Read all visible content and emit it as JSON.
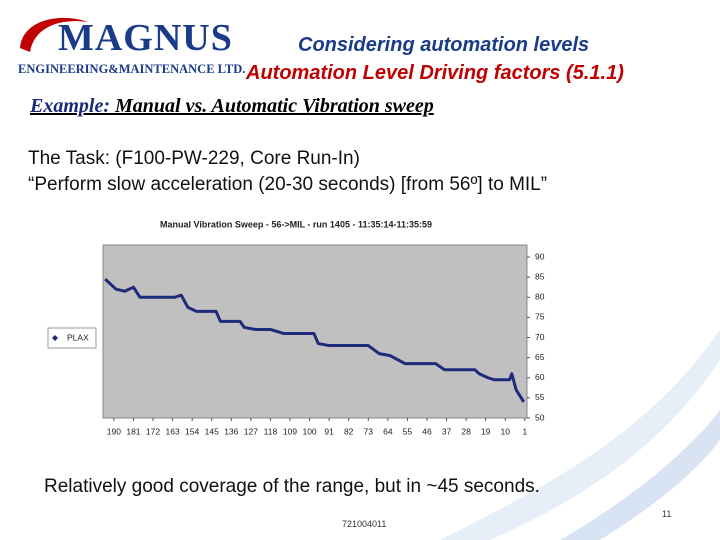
{
  "header": {
    "logo_name": "MAGNUS",
    "logo_sub": "ENGINEERING&MAINTENANCE LTD.",
    "title": "Considering automation levels",
    "subtitle": "Automation Level Driving factors (5.1.1)"
  },
  "example": {
    "label": "Example:",
    "text": "Manual vs. Automatic Vibration sweep"
  },
  "body": {
    "lines": [
      "The Task: (F100-PW-229, Core Run-In)",
      "“Perform slow acceleration (20-30 seconds) [from 56º] to MIL”"
    ]
  },
  "chart_data": {
    "type": "line",
    "title": "Manual Vibration Sweep - 56->MIL - run 1405 - 11:35:14-11:35:59",
    "x": [
      194,
      189,
      185,
      181,
      178,
      169,
      162,
      159,
      156,
      152,
      143,
      141,
      132,
      130,
      125,
      118,
      112,
      98,
      96,
      91,
      73,
      68,
      63,
      56,
      42,
      38,
      24,
      22,
      18,
      15,
      8,
      7,
      5,
      1.5
    ],
    "series": [
      {
        "name": "PLAX",
        "color": "#1f2a7a",
        "values": [
          84.5,
          82,
          81.5,
          82.5,
          80,
          80,
          80,
          80.5,
          77.5,
          76.5,
          76.5,
          74,
          74,
          72.5,
          72,
          72,
          71,
          71,
          68.5,
          68,
          68,
          66,
          65.5,
          63.5,
          63.5,
          62,
          62,
          61,
          60,
          59.5,
          59.5,
          61,
          57,
          54
        ]
      }
    ],
    "xlim": [
      195,
      0
    ],
    "xticks": [
      190,
      181,
      172,
      163,
      154,
      145,
      136,
      127,
      118,
      109,
      100,
      91,
      82,
      73,
      64,
      55,
      46,
      37,
      28,
      19,
      10,
      1
    ],
    "ylim": [
      50,
      90
    ],
    "yticks": [
      50,
      55,
      60,
      65,
      70,
      75,
      80,
      85,
      90
    ],
    "legend": "left"
  },
  "caption": "Relatively good coverage of the range, but in ~45 seconds.",
  "footer": {
    "code": "721004011",
    "page": "11"
  }
}
